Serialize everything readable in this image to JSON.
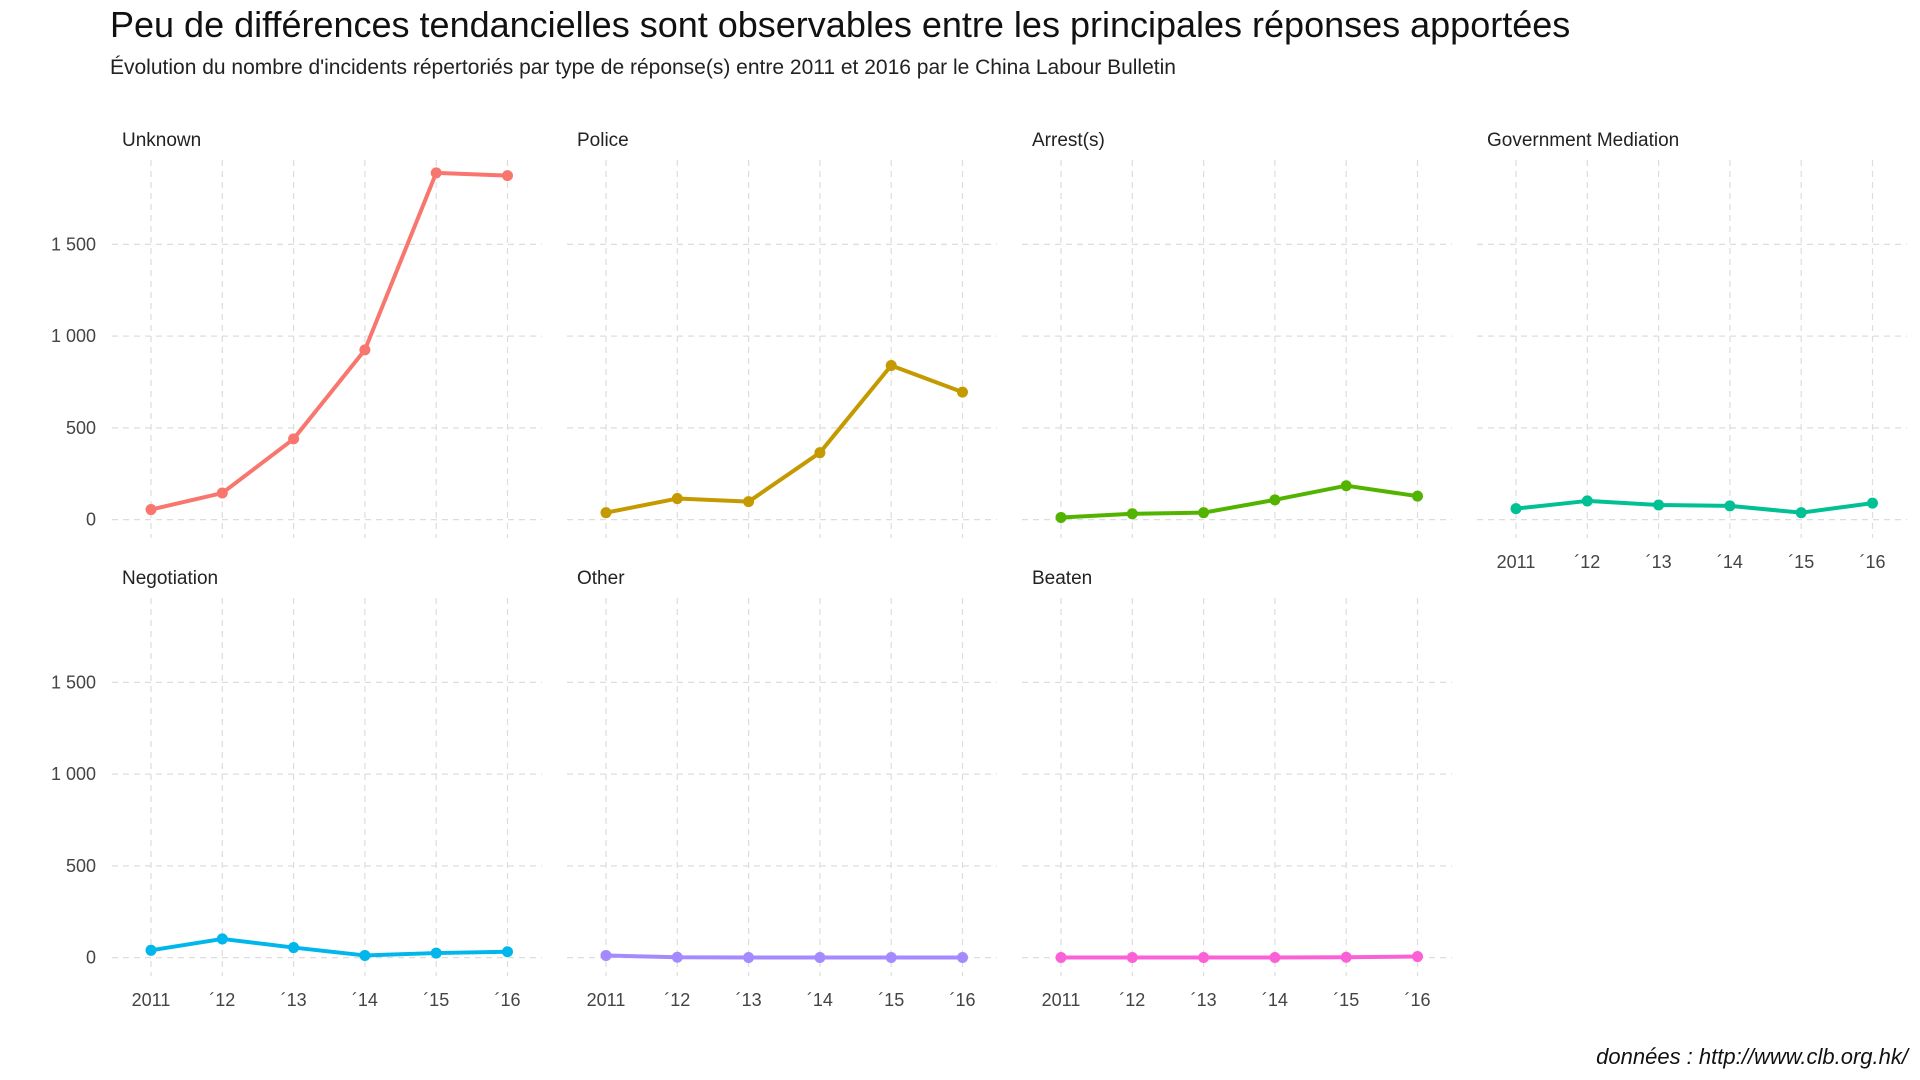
{
  "title": "Peu de différences tendancielles sont observables entre les principales réponses apportées",
  "subtitle": "Évolution du nombre d'incidents répertoriés par type de réponse(s) entre 2011 et 2016 par le China Labour Bulletin",
  "caption": "données : http://www.clb.org.hk/",
  "chart_data": {
    "type": "line",
    "layout": "facets",
    "grid": true,
    "x": [
      2011,
      2012,
      2013,
      2014,
      2015,
      2016
    ],
    "x_tick_labels": [
      "2011",
      "´12",
      "´13",
      "´14",
      "´15",
      "´16"
    ],
    "y_ticks": [
      0,
      500,
      1000,
      1500
    ],
    "y_tick_labels": [
      "0",
      "500",
      "1 000",
      "1 500"
    ],
    "ylim": [
      -100,
      1960
    ],
    "panels": [
      {
        "name": "Unknown",
        "color": "#F8766D",
        "values": [
          55,
          145,
          440,
          925,
          1890,
          1875
        ]
      },
      {
        "name": "Police",
        "color": "#C49A00",
        "values": [
          38,
          115,
          98,
          365,
          840,
          695
        ]
      },
      {
        "name": "Arrest(s)",
        "color": "#53B400",
        "values": [
          12,
          32,
          38,
          108,
          185,
          128
        ]
      },
      {
        "name": "Government Mediation",
        "color": "#00C094",
        "values": [
          60,
          102,
          80,
          75,
          38,
          90
        ]
      },
      {
        "name": "Negotiation",
        "color": "#00B6EB",
        "values": [
          40,
          102,
          55,
          12,
          25,
          32
        ]
      },
      {
        "name": "Other",
        "color": "#A58AFF",
        "values": [
          12,
          2,
          1,
          1,
          1,
          1
        ]
      },
      {
        "name": "Beaten",
        "color": "#FB61D7",
        "values": [
          1,
          1,
          1,
          1,
          2,
          6
        ]
      }
    ]
  }
}
